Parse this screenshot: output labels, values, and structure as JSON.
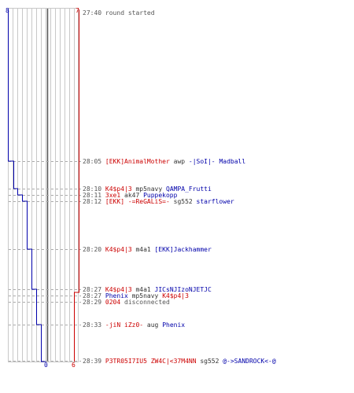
{
  "axis": {
    "top_left": "8",
    "top_right": "7",
    "bottom_left": "0",
    "bottom_right": "6"
  },
  "colors": {
    "team_ct": "#0000aa",
    "team_t": "#cc0000",
    "grid": "#c8c8c8",
    "center_line": "#555555",
    "timestamp": "#555555"
  },
  "events": [
    {
      "time": "27:40",
      "parts": [
        {
          "text": "round started",
          "color": "gray"
        }
      ]
    },
    {
      "time": "28:05",
      "parts": [
        {
          "text": "[EKK]AnimalMother",
          "color": "red"
        },
        {
          "text": " awp ",
          "color": "dark"
        },
        {
          "text": "-|SoI|- Madball",
          "color": "blue"
        }
      ]
    },
    {
      "time": "28:10",
      "parts": [
        {
          "text": "K4$p4|3",
          "color": "red"
        },
        {
          "text": " mp5navy ",
          "color": "dark"
        },
        {
          "text": "QAMPA_Frutti",
          "color": "blue"
        }
      ]
    },
    {
      "time": "28:11",
      "parts": [
        {
          "text": "3xe1",
          "color": "red"
        },
        {
          "text": " ak47 ",
          "color": "dark"
        },
        {
          "text": "Puppekopp",
          "color": "blue"
        }
      ]
    },
    {
      "time": "28:12",
      "parts": [
        {
          "text": "[EKK] -=ReGALiS=-",
          "color": "red"
        },
        {
          "text": " sg552 ",
          "color": "dark"
        },
        {
          "text": "starflower",
          "color": "blue"
        }
      ]
    },
    {
      "time": "28:20",
      "parts": [
        {
          "text": "K4$p4|3",
          "color": "red"
        },
        {
          "text": " m4a1 ",
          "color": "dark"
        },
        {
          "text": "[EKK]Jackhammer",
          "color": "blue"
        }
      ]
    },
    {
      "time": "28:27",
      "parts": [
        {
          "text": "K4$p4|3",
          "color": "red"
        },
        {
          "text": " m4a1 ",
          "color": "dark"
        },
        {
          "text": "JICsNJIzoNJETJC",
          "color": "blue"
        }
      ]
    },
    {
      "time": "28:27",
      "parts": [
        {
          "text": "Phenix",
          "color": "blue"
        },
        {
          "text": " mp5navy ",
          "color": "dark"
        },
        {
          "text": "K4$p4|3",
          "color": "red"
        }
      ]
    },
    {
      "time": "28:29",
      "parts": [
        {
          "text": "0204",
          "color": "red"
        },
        {
          "text": " disconnected",
          "color": "gray"
        }
      ]
    },
    {
      "time": "28:33",
      "parts": [
        {
          "text": "-jiN iZz0-",
          "color": "red"
        },
        {
          "text": " aug ",
          "color": "dark"
        },
        {
          "text": "Phenix",
          "color": "blue"
        }
      ]
    },
    {
      "time": "28:39",
      "parts": [
        {
          "text": "P3TR05I7IU5 ZW4C|<37M4NN",
          "color": "red"
        },
        {
          "text": " sg552 ",
          "color": "dark"
        },
        {
          "text": "@->SANDROCK<-@",
          "color": "blue"
        }
      ]
    }
  ]
}
